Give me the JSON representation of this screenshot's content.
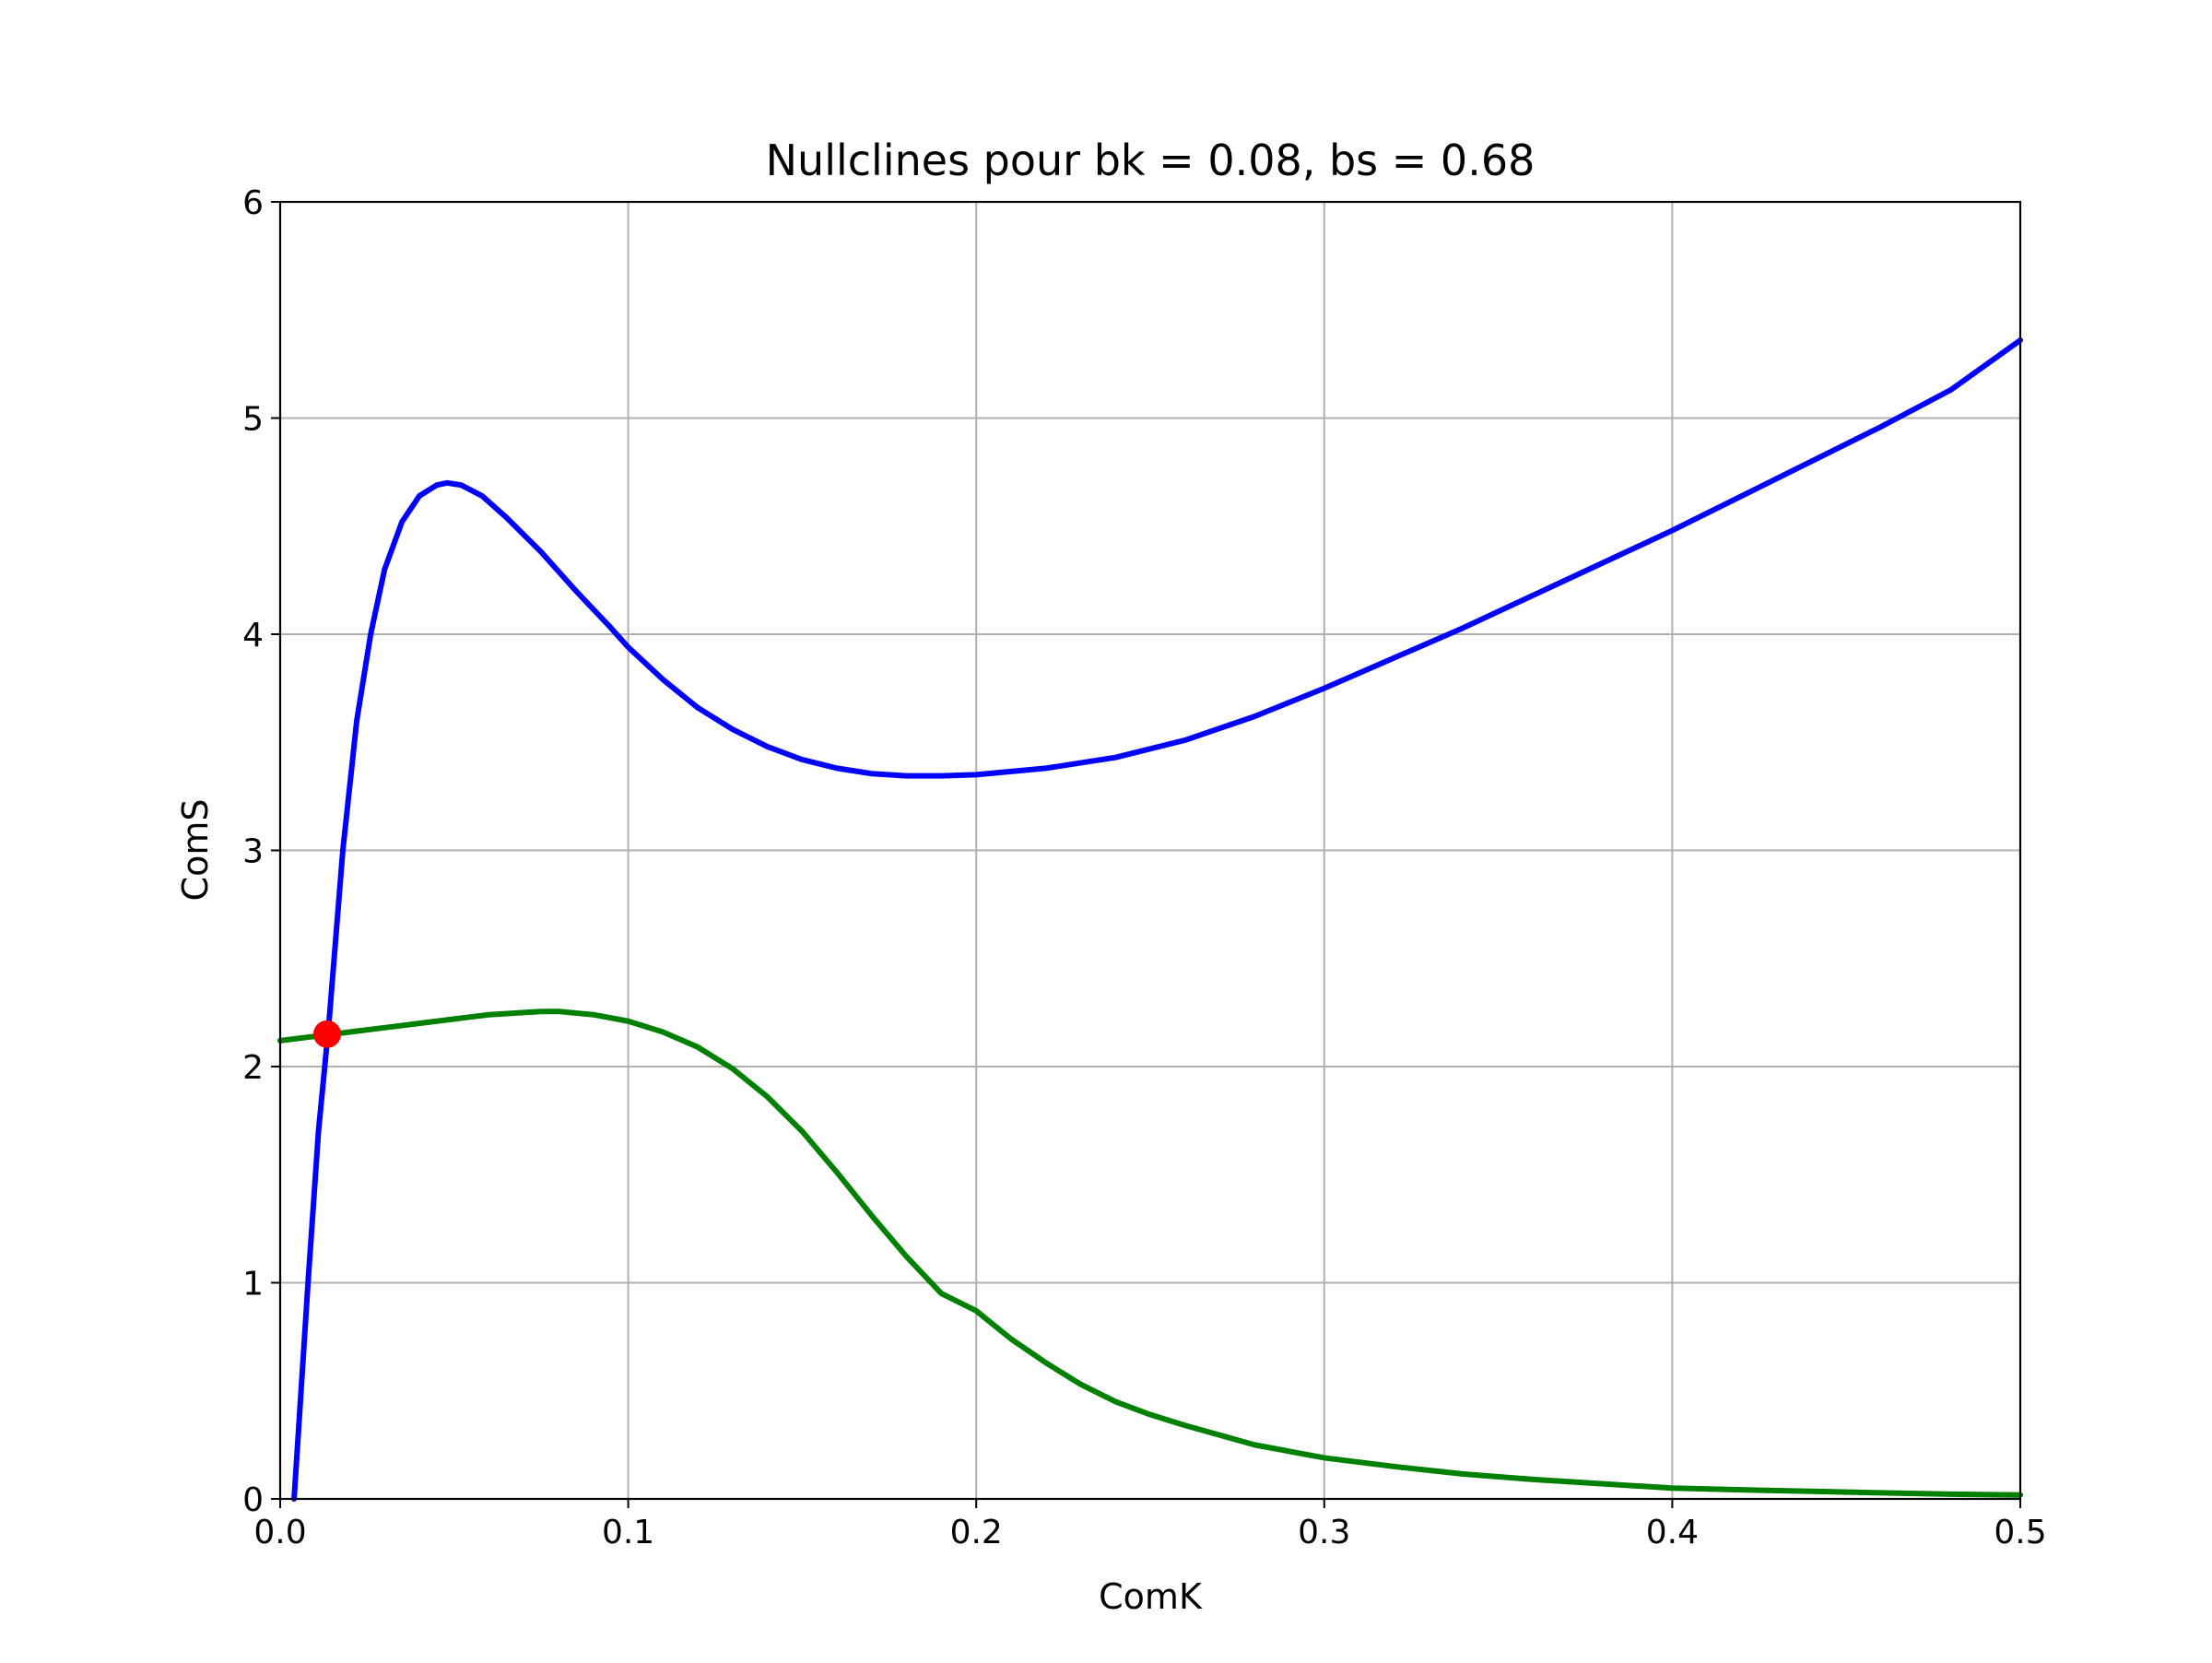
{
  "chart_data": {
    "type": "line",
    "title": "Nullclines pour bk = 0.08, bs = 0.68",
    "xlabel": "ComK",
    "ylabel": "ComS",
    "xlim": [
      0,
      0.5
    ],
    "ylim": [
      0,
      6
    ],
    "x_ticks": [
      "0.0",
      "0.1",
      "0.2",
      "0.3",
      "0.4",
      "0.5"
    ],
    "y_ticks": [
      "0",
      "1",
      "2",
      "3",
      "4",
      "5",
      "6"
    ],
    "grid": true,
    "legend": "none",
    "series": [
      {
        "color": "#0000ff",
        "points": [
          [
            0.004,
            0.0
          ],
          [
            0.008,
            1.0
          ],
          [
            0.011,
            1.7
          ],
          [
            0.014,
            2.2
          ],
          [
            0.018,
            3.0
          ],
          [
            0.022,
            3.6
          ],
          [
            0.026,
            4.0
          ],
          [
            0.03,
            4.3
          ],
          [
            0.035,
            4.52
          ],
          [
            0.04,
            4.64
          ],
          [
            0.045,
            4.69
          ],
          [
            0.048,
            4.7
          ],
          [
            0.052,
            4.69
          ],
          [
            0.058,
            4.64
          ],
          [
            0.065,
            4.54
          ],
          [
            0.075,
            4.38
          ],
          [
            0.085,
            4.2
          ],
          [
            0.095,
            4.03
          ],
          [
            0.1,
            3.94
          ],
          [
            0.11,
            3.79
          ],
          [
            0.12,
            3.66
          ],
          [
            0.13,
            3.56
          ],
          [
            0.14,
            3.48
          ],
          [
            0.15,
            3.42
          ],
          [
            0.16,
            3.38
          ],
          [
            0.17,
            3.355
          ],
          [
            0.18,
            3.345
          ],
          [
            0.19,
            3.345
          ],
          [
            0.2,
            3.35
          ],
          [
            0.22,
            3.38
          ],
          [
            0.24,
            3.43
          ],
          [
            0.26,
            3.51
          ],
          [
            0.28,
            3.62
          ],
          [
            0.3,
            3.75
          ],
          [
            0.32,
            3.89
          ],
          [
            0.34,
            4.03
          ],
          [
            0.36,
            4.18
          ],
          [
            0.38,
            4.33
          ],
          [
            0.4,
            4.48
          ],
          [
            0.42,
            4.64
          ],
          [
            0.44,
            4.8
          ],
          [
            0.46,
            4.96
          ],
          [
            0.48,
            5.13
          ],
          [
            0.5,
            5.36
          ]
        ]
      },
      {
        "color": "#008000",
        "points": [
          [
            0.0,
            2.12
          ],
          [
            0.01,
            2.14
          ],
          [
            0.02,
            2.16
          ],
          [
            0.03,
            2.18
          ],
          [
            0.04,
            2.2
          ],
          [
            0.05,
            2.22
          ],
          [
            0.06,
            2.24
          ],
          [
            0.07,
            2.25
          ],
          [
            0.075,
            2.255
          ],
          [
            0.08,
            2.255
          ],
          [
            0.09,
            2.24
          ],
          [
            0.1,
            2.21
          ],
          [
            0.11,
            2.16
          ],
          [
            0.12,
            2.09
          ],
          [
            0.13,
            1.99
          ],
          [
            0.14,
            1.86
          ],
          [
            0.15,
            1.7
          ],
          [
            0.16,
            1.51
          ],
          [
            0.17,
            1.31
          ],
          [
            0.18,
            1.12
          ],
          [
            0.19,
            0.95
          ],
          [
            0.2,
            0.87
          ],
          [
            0.21,
            0.74
          ],
          [
            0.22,
            0.63
          ],
          [
            0.23,
            0.53
          ],
          [
            0.24,
            0.45
          ],
          [
            0.25,
            0.39
          ],
          [
            0.26,
            0.34
          ],
          [
            0.28,
            0.25
          ],
          [
            0.3,
            0.19
          ],
          [
            0.32,
            0.15
          ],
          [
            0.34,
            0.115
          ],
          [
            0.36,
            0.09
          ],
          [
            0.38,
            0.07
          ],
          [
            0.4,
            0.05
          ],
          [
            0.42,
            0.042
          ],
          [
            0.44,
            0.035
          ],
          [
            0.46,
            0.028
          ],
          [
            0.48,
            0.022
          ],
          [
            0.5,
            0.018
          ]
        ]
      }
    ],
    "marker": {
      "x": 0.0135,
      "y": 2.15,
      "color": "#ff0000"
    }
  }
}
